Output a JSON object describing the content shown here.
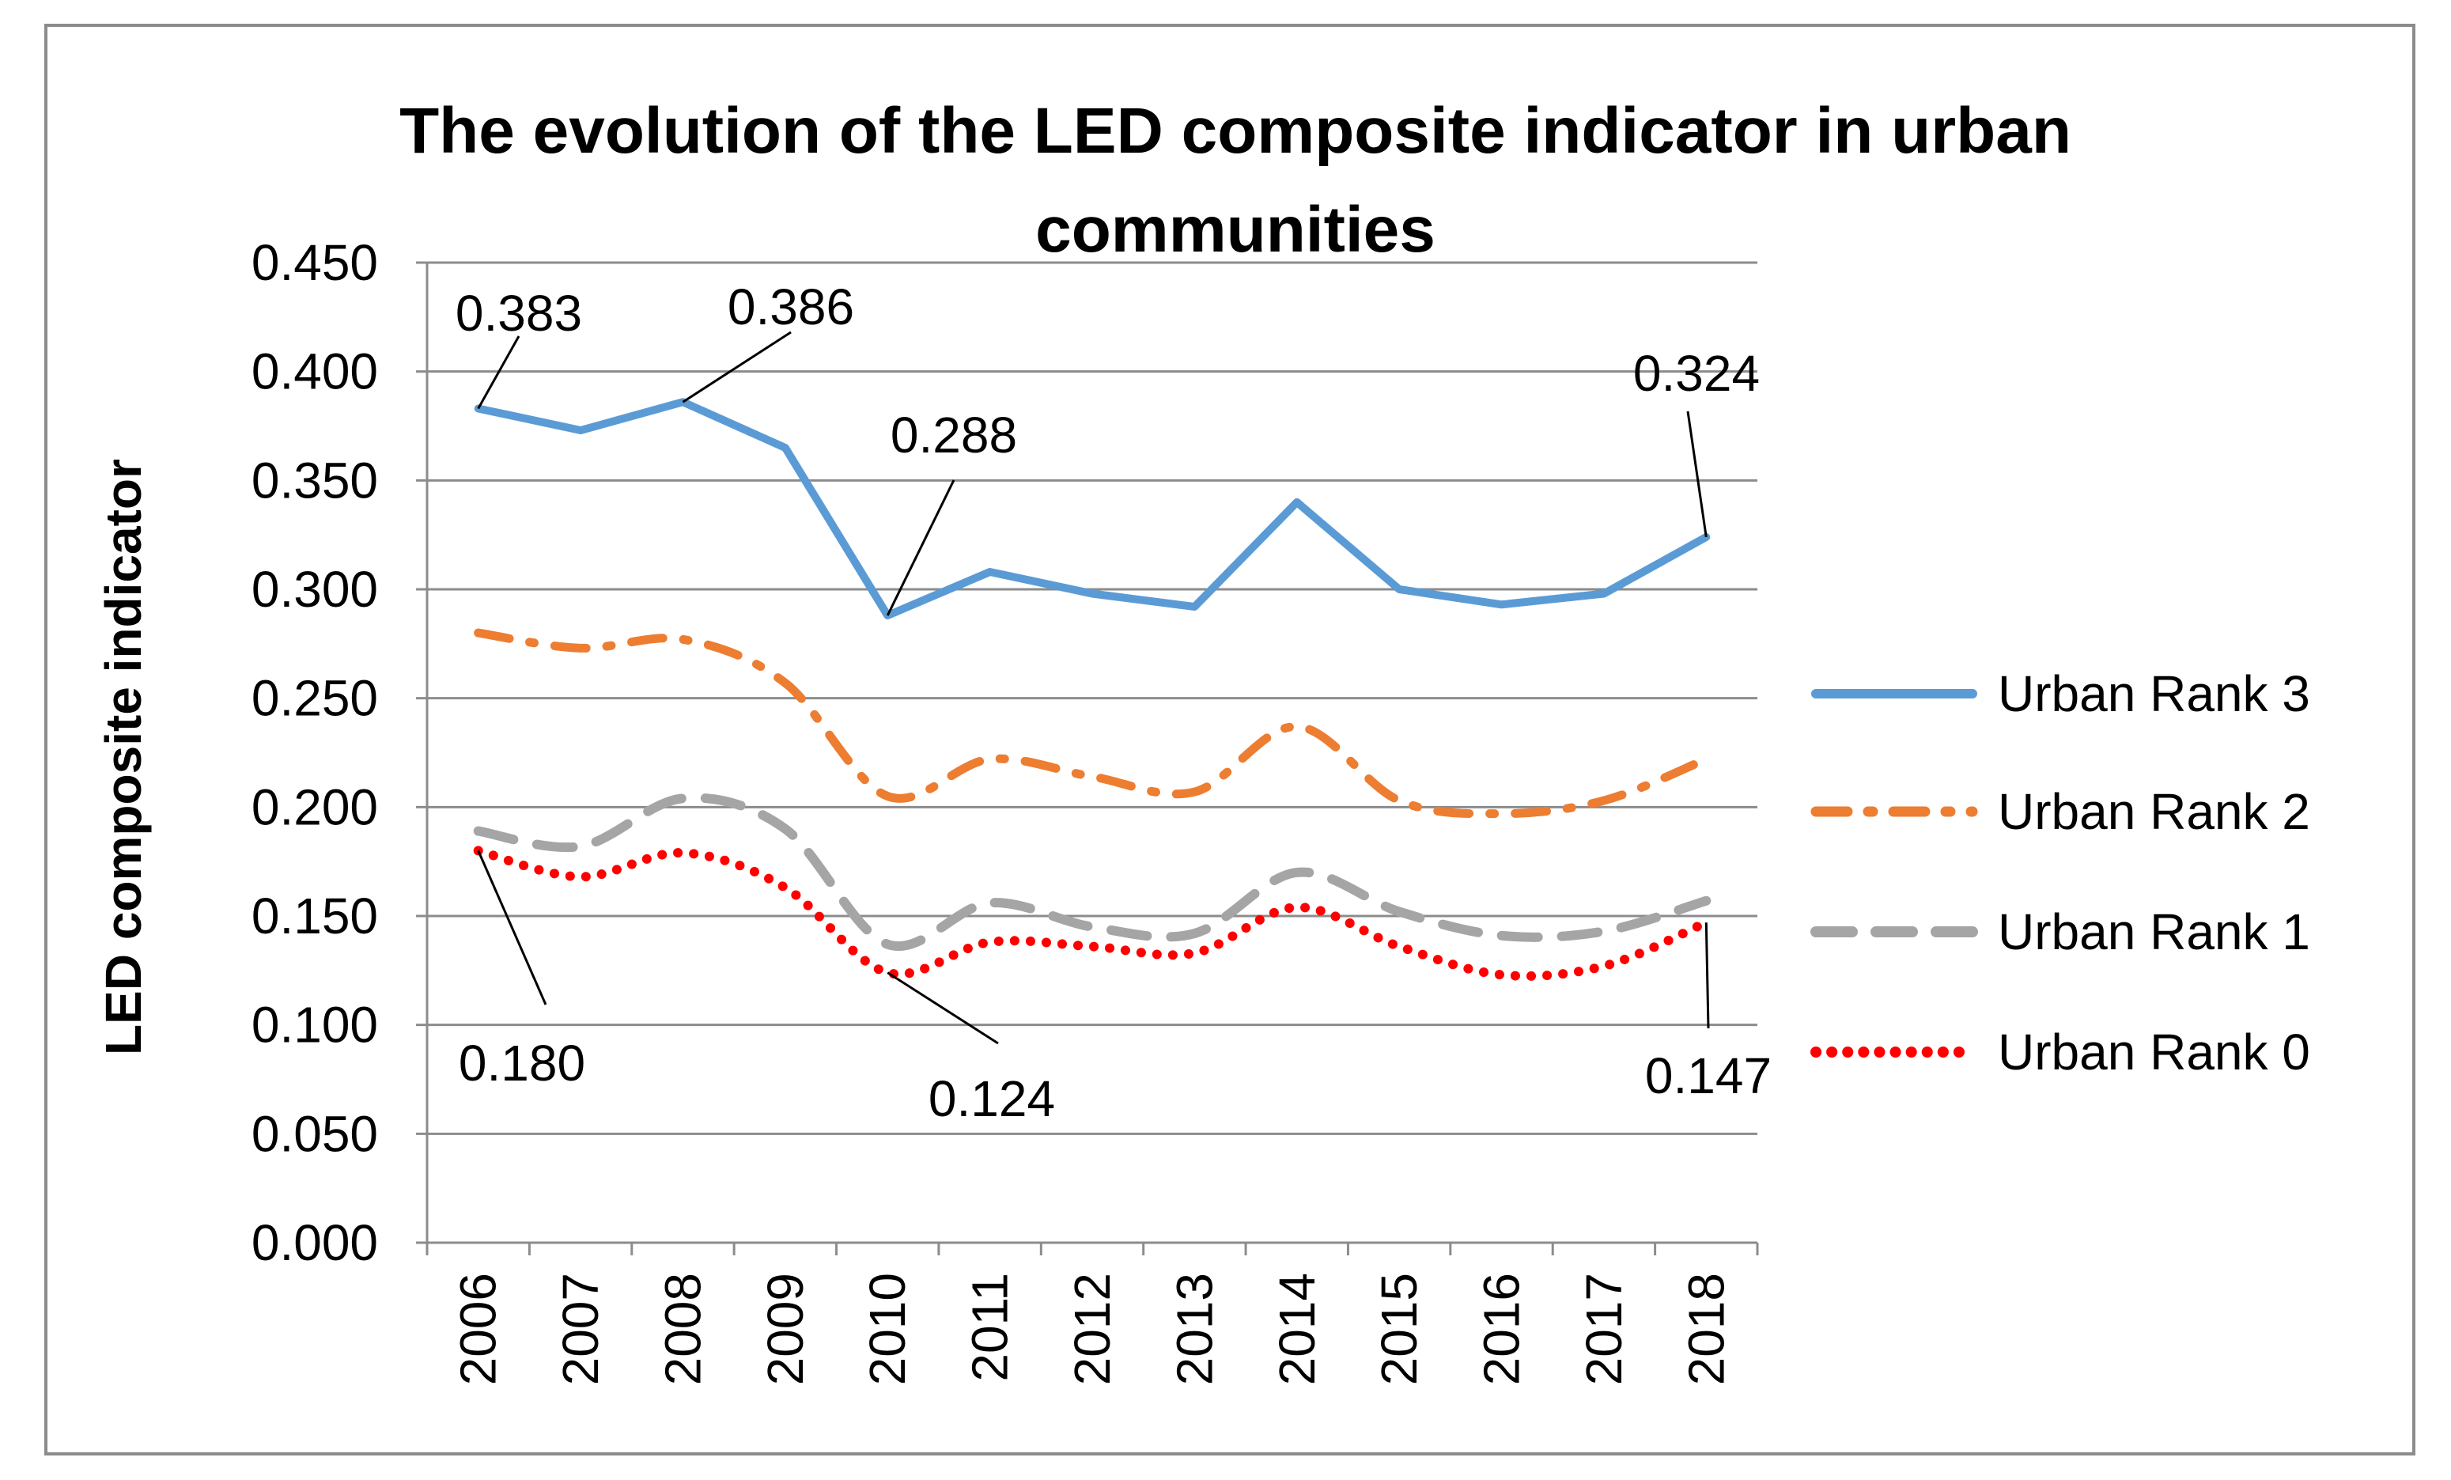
{
  "chart_data": {
    "type": "line",
    "title_line1": "The evolution of the LED composite indicator in urban",
    "title_line2": "communities",
    "xlabel": "",
    "ylabel": "LED composite indicator",
    "ylim": [
      0,
      0.45
    ],
    "y_tick_labels": [
      "0.000",
      "0.050",
      "0.100",
      "0.150",
      "0.200",
      "0.250",
      "0.300",
      "0.350",
      "0.400",
      "0.450"
    ],
    "categories": [
      "2006",
      "2007",
      "2008",
      "2009",
      "2010",
      "2011",
      "2012",
      "2013",
      "2014",
      "2015",
      "2016",
      "2017",
      "2018"
    ],
    "grid": true,
    "legend_position": "right",
    "series": [
      {
        "name": "Urban Rank 3",
        "style": "solid",
        "color": "#5b9bd5",
        "values": [
          0.383,
          0.373,
          0.386,
          0.365,
          0.288,
          0.308,
          0.298,
          0.292,
          0.34,
          0.3,
          0.293,
          0.298,
          0.324
        ]
      },
      {
        "name": "Urban Rank 2",
        "style": "dash-dot",
        "color": "#ed7d31",
        "values": [
          0.28,
          0.273,
          0.277,
          0.257,
          0.205,
          0.222,
          0.214,
          0.207,
          0.237,
          0.203,
          0.197,
          0.203,
          0.222
        ]
      },
      {
        "name": "Urban Rank 1",
        "style": "dash",
        "color": "#a5a5a5",
        "values": [
          0.189,
          0.182,
          0.204,
          0.19,
          0.137,
          0.156,
          0.145,
          0.142,
          0.17,
          0.152,
          0.141,
          0.143,
          0.157
        ]
      },
      {
        "name": "Urban Rank 0",
        "style": "dot",
        "color": "#ff0000",
        "values": [
          0.18,
          0.168,
          0.179,
          0.163,
          0.124,
          0.138,
          0.136,
          0.133,
          0.154,
          0.136,
          0.123,
          0.127,
          0.147
        ]
      }
    ],
    "data_labels": [
      {
        "text": "0.383",
        "series": 0,
        "index": 0
      },
      {
        "text": "0.386",
        "series": 0,
        "index": 2
      },
      {
        "text": "0.288",
        "series": 0,
        "index": 4
      },
      {
        "text": "0.324",
        "series": 0,
        "index": 12
      },
      {
        "text": "0.180",
        "series": 3,
        "index": 0
      },
      {
        "text": "0.124",
        "series": 3,
        "index": 4
      },
      {
        "text": "0.147",
        "series": 3,
        "index": 12
      }
    ]
  }
}
